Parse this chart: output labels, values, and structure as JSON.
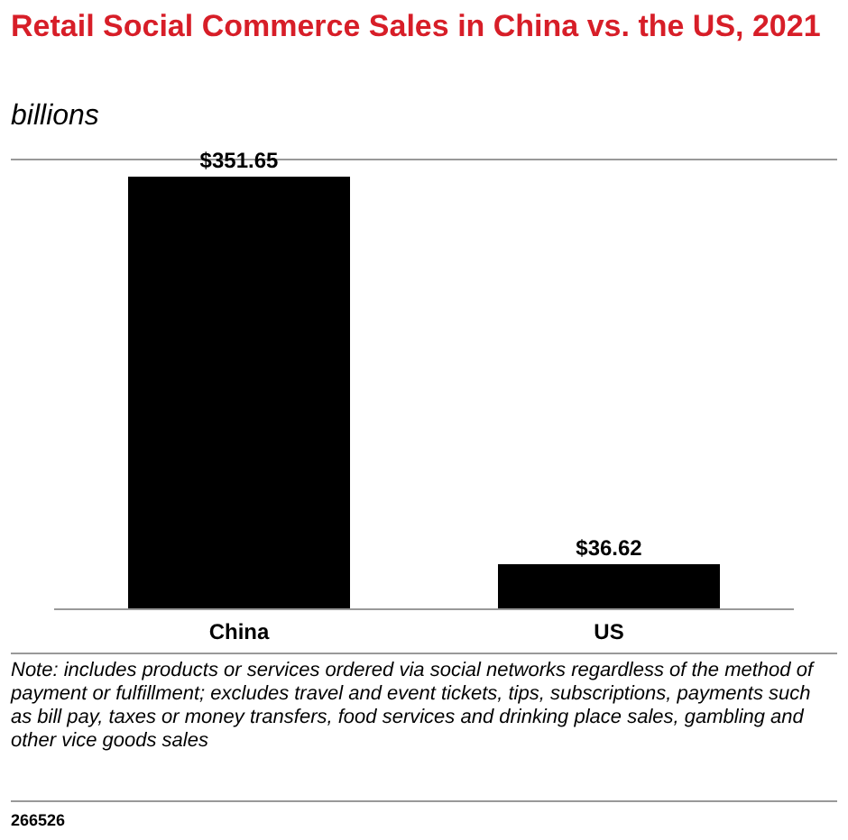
{
  "chart_data": {
    "type": "bar",
    "title": "Retail Social Commerce Sales in China vs. the US, 2021",
    "subtitle": "billions",
    "categories": [
      "China",
      "US"
    ],
    "values": [
      351.65,
      36.62
    ],
    "color": "#000000",
    "data_labels": true,
    "value_labels": [
      "$351.65",
      "$36.62"
    ],
    "grid": false,
    "legend": false,
    "annotations": [
      "Note: includes products or services ordered via social networks regardless of the method of payment or fulfillment; excludes travel and event tickets, tips, subscriptions, payments such as bill pay, taxes or money transfers, food services and drinking place sales, gambling and other vice goods sales",
      "266526"
    ]
  }
}
